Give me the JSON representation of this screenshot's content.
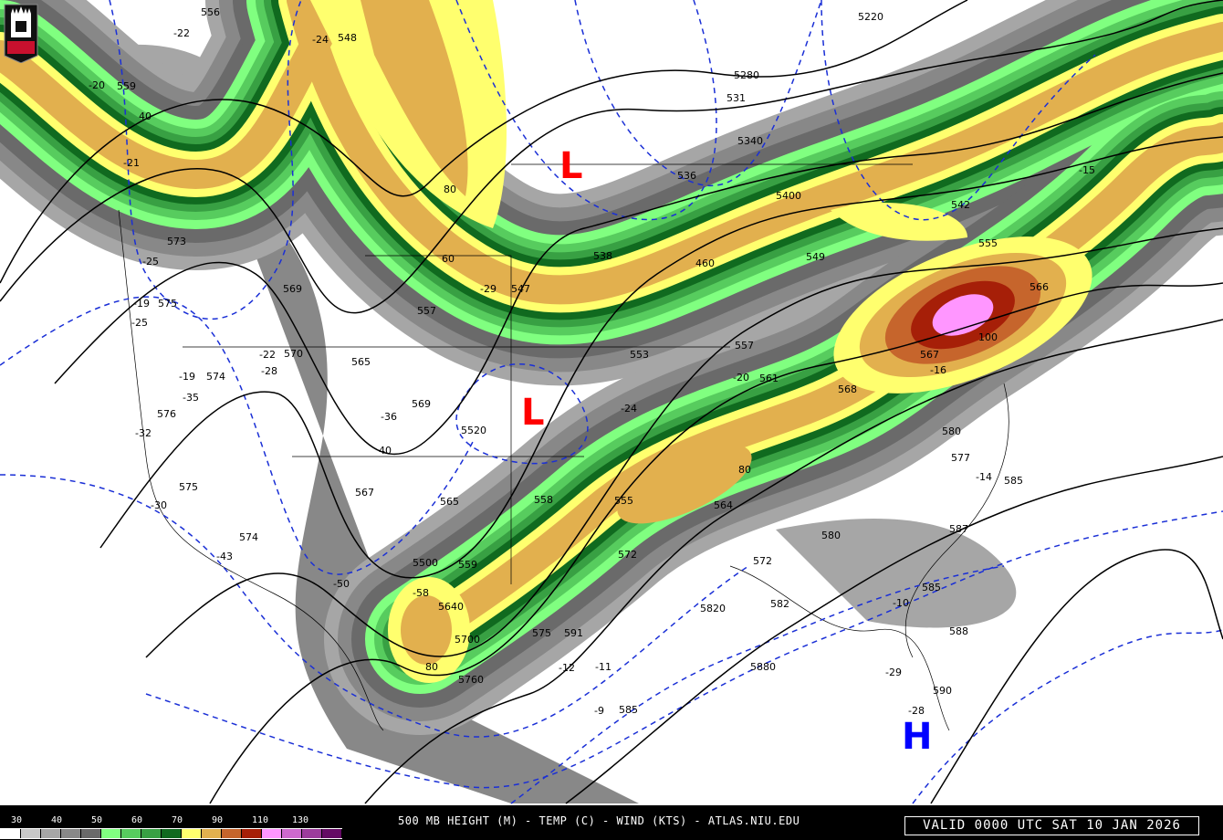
{
  "map": {
    "logo_text": "NIU",
    "low_symbol": "L",
    "high_symbol": "H",
    "colors": {
      "low": "#ff0000",
      "high": "#0000ff",
      "height_contour": "#000000",
      "temp_contour": "#1a2fd6"
    },
    "height_labels": [
      "5220",
      "5280",
      "5340",
      "5400",
      "460",
      "5520",
      "5500",
      "5640",
      "5700",
      "5760",
      "5820",
      "5880"
    ],
    "station_labels": [
      "556",
      "548",
      "531",
      "536",
      "542",
      "569",
      "538",
      "547",
      "557",
      "553",
      "557",
      "561",
      "549",
      "555",
      "566",
      "567",
      "568",
      "569",
      "570",
      "574",
      "575",
      "576",
      "575",
      "574",
      "573",
      "559",
      "565",
      "567",
      "559",
      "565",
      "558",
      "555",
      "564",
      "572",
      "572",
      "580",
      "582",
      "585",
      "588",
      "590",
      "591",
      "585",
      "575",
      "577",
      "580",
      "585",
      "587",
      "100",
      "80",
      "80",
      "80",
      "40",
      "40",
      "60"
    ],
    "temp_labels": [
      "-22",
      "-24",
      "-20",
      "-21",
      "-25",
      "-19",
      "-25",
      "-22",
      "-19",
      "-35",
      "-32",
      "-30",
      "-43",
      "-50",
      "-58",
      "-28",
      "-29",
      "-36",
      "-24",
      "-20",
      "-16",
      "-15",
      "-14",
      "-12",
      "-11",
      "-10",
      "-9",
      "-29",
      "-28"
    ]
  },
  "legend": {
    "labels": [
      "30",
      "40",
      "50",
      "60",
      "70",
      "90",
      "110",
      "130"
    ],
    "colors": [
      "#ffffff",
      "#c8c8c8",
      "#a6a6a6",
      "#888888",
      "#6a6a6a",
      "#80ff80",
      "#57cc5e",
      "#38a043",
      "#106a1f",
      "#ffff6e",
      "#e2b04e",
      "#c6652c",
      "#a61f08",
      "#ff96ff",
      "#cd69cd",
      "#9c3c9c",
      "#640a64"
    ]
  },
  "footer": {
    "caption": "500 MB HEIGHT (M) - TEMP (C) - WIND (KTS) - ATLAS.NIU.EDU",
    "valid_time": "VALID 0000 UTC SAT 10 JAN 2026"
  }
}
